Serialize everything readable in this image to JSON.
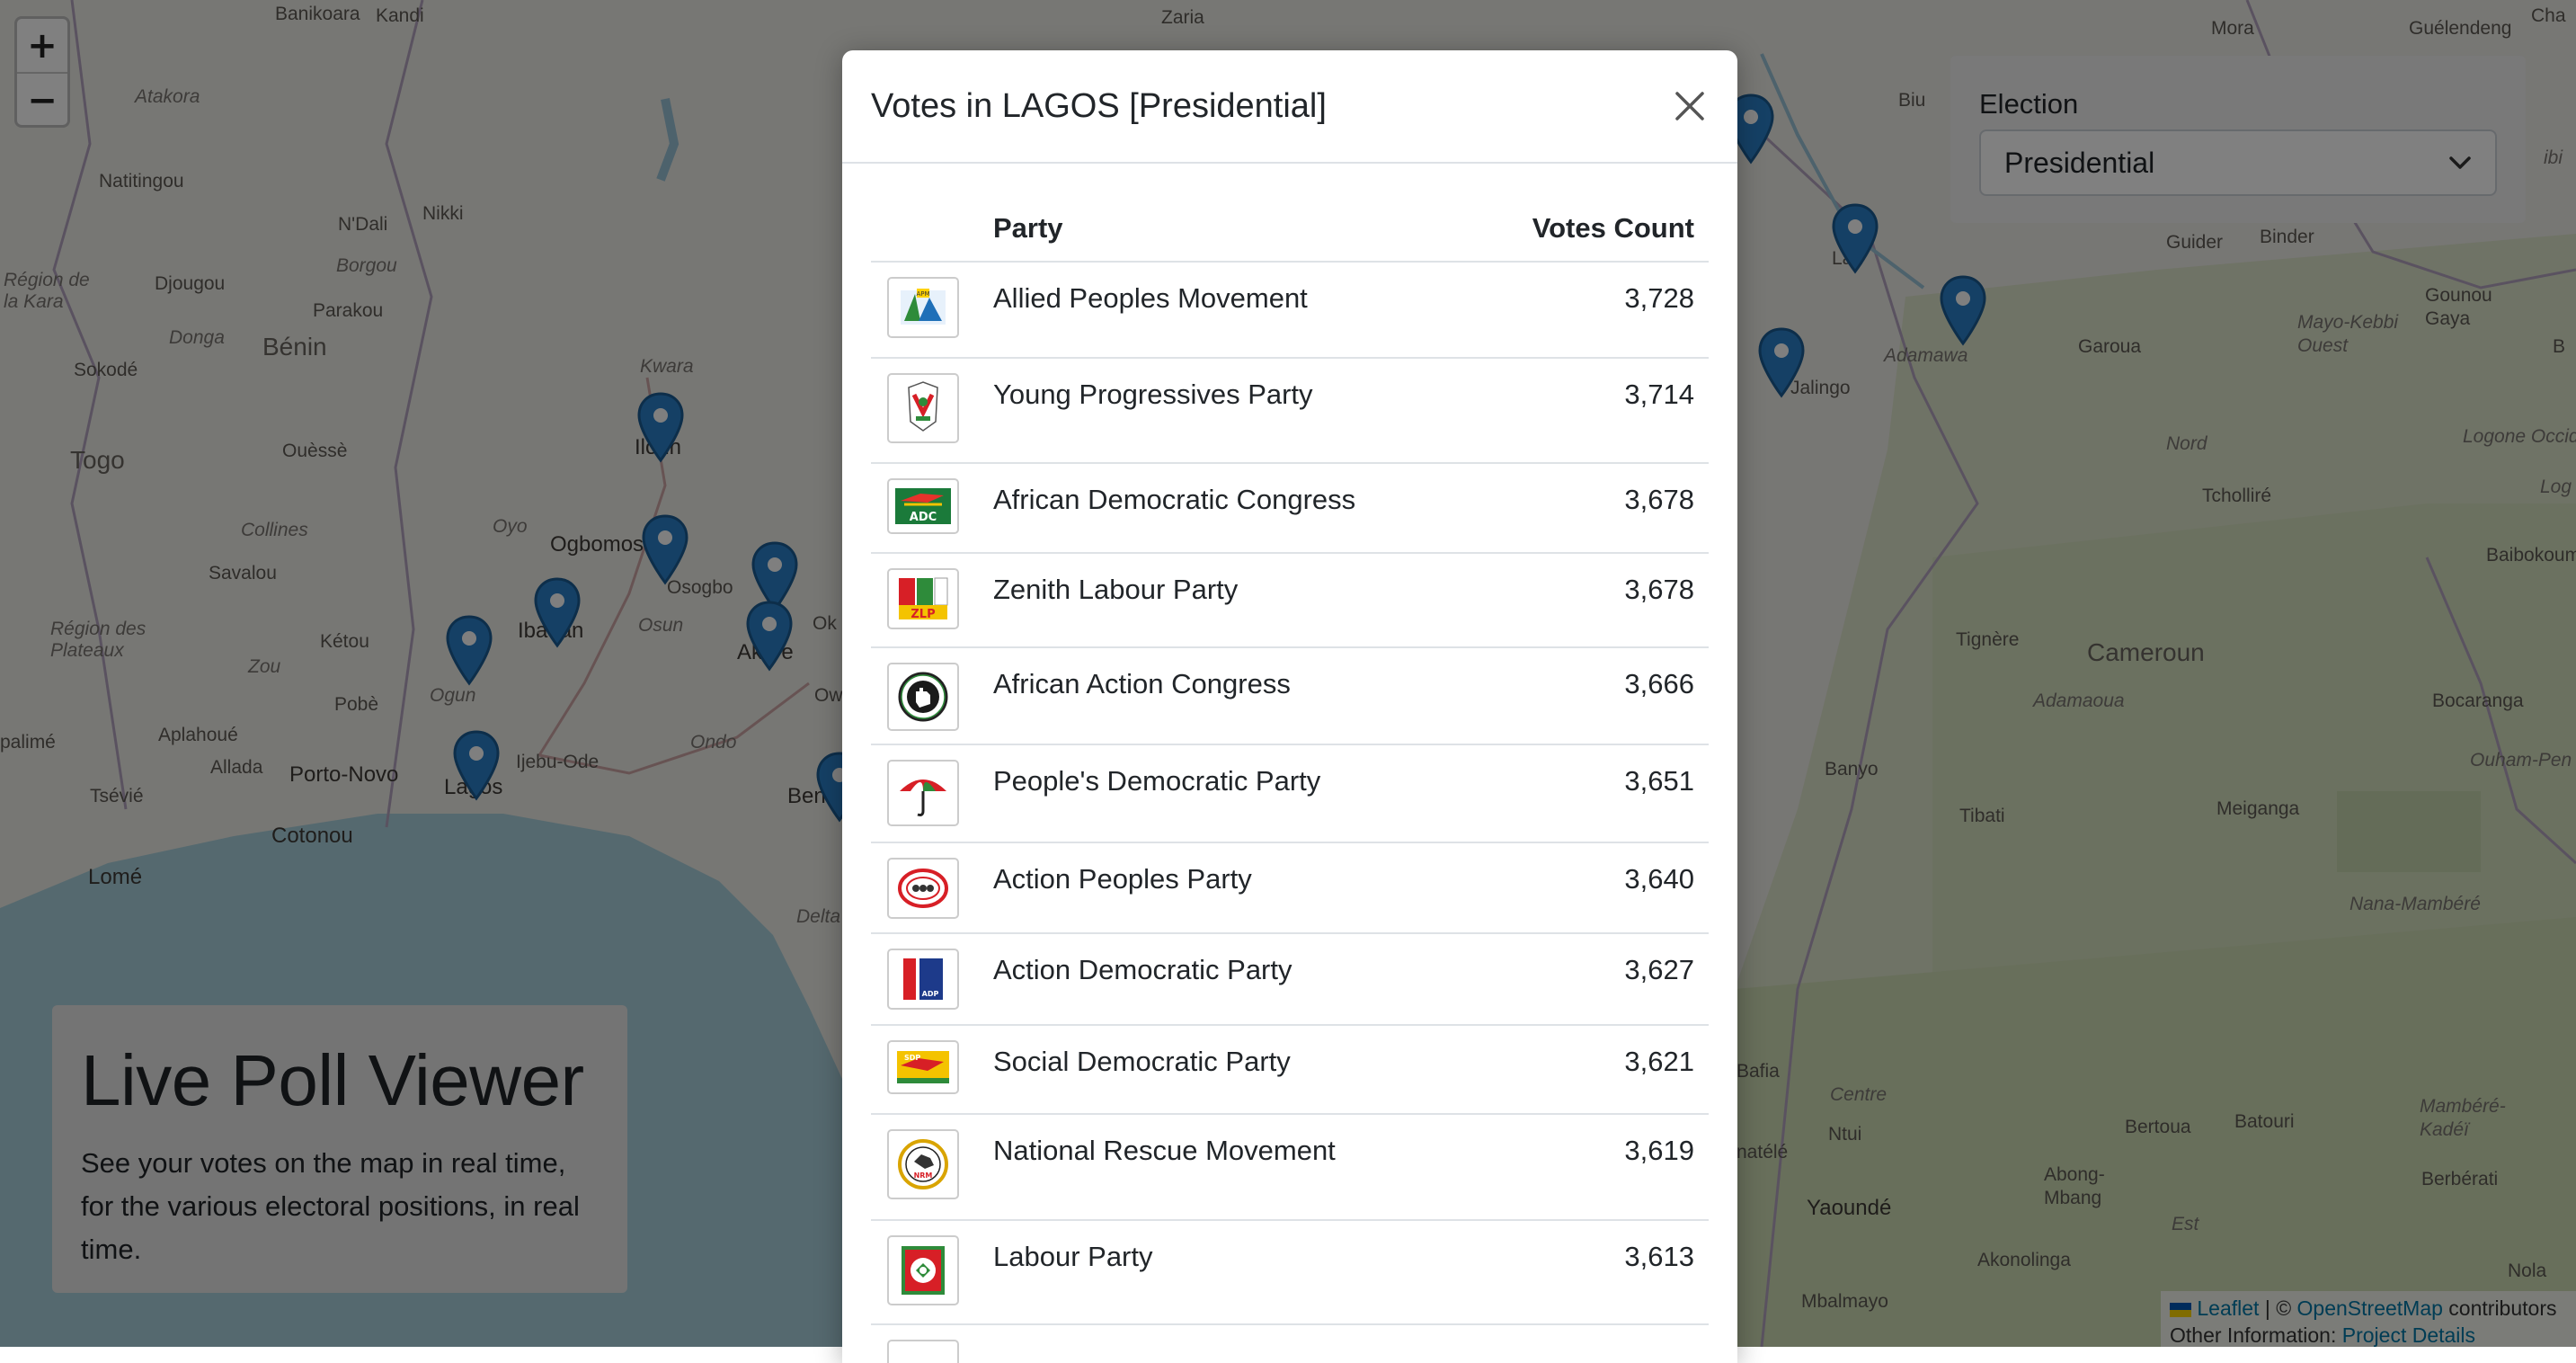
{
  "map": {
    "labels": {
      "banikoara": "Banikoara",
      "kandi": "Kandi",
      "zaria": "Zaria",
      "atakora": "Atakora",
      "natitingou": "Natitingou",
      "ndali": "N'Dali",
      "nikki": "Nikki",
      "borgou": "Borgou",
      "region_kara": "Région de\nla Kara",
      "djougou": "Djougou",
      "parakou": "Parakou",
      "donga": "Donga",
      "benin_country": "Bénin",
      "sokode": "Sokodé",
      "kwara": "Kwara",
      "ilorin": "Ilorin",
      "togo": "Togo",
      "ouesse": "Ouèssè",
      "collines": "Collines",
      "oyo": "Oyo",
      "ogbomoso": "Ogbomoso",
      "savalou": "Savalou",
      "osogbo": "Osogbo",
      "ibadan": "Ibadan",
      "osun": "Osun",
      "akure": "Akure",
      "region_plateaux": "Région des\nPlateaux",
      "ketou": "Kétou",
      "zou": "Zou",
      "ogun": "Ogun",
      "pobe": "Pobè",
      "palime": "palimé",
      "aplahoue": "Aplahoué",
      "allada": "Allada",
      "porto_novo": "Porto-Novo",
      "ijebu_ode": "Ijebu-Ode",
      "ondo": "Ondo",
      "tsevie": "Tsévié",
      "lagos": "Lagos",
      "cotonou": "Cotonou",
      "lome": "Lomé",
      "benin_city": "Benin",
      "delta": "Delta",
      "mora": "Mora",
      "guelendeng": "Guélendeng",
      "biu": "Biu",
      "lau": "Lau",
      "adamawa": "Adamawa",
      "jalingo": "Jalingo",
      "guider": "Guider",
      "binder": "Binder",
      "garoua": "Garoua",
      "mayo_kebbi": "Mayo-Kebbi\nOuest",
      "gounou_gaya": "Gounou\nGaya",
      "nord": "Nord",
      "tcholliré": "Tcholliré",
      "logone": "Logone Occide",
      "baibokoum": "Baibokoum",
      "tignere": "Tignère",
      "cameroun": "Cameroun",
      "adamaoua": "Adamaoua",
      "bocaranga": "Bocaranga",
      "ouham": "Ouham-Pen",
      "banyo": "Banyo",
      "tibati": "Tibati",
      "meiganga": "Meiganga",
      "nana_mambere": "Nana-Mambéré",
      "bafia": "Bafia",
      "centre": "Centre",
      "ntui": "Ntui",
      "bertoua": "Bertoua",
      "batouri": "Batouri",
      "mambere_kadei": "Mambéré-\nKadéï",
      "abong_mbang": "Abong-\nMbang",
      "berberati": "Berbérati",
      "natele": "natélé",
      "yaounde": "Yaoundé",
      "est": "Est",
      "akonolinga": "Akonolinga",
      "mbalmayo": "Mbalmayo",
      "nola": "Nola",
      "chad": "Cha",
      "b_edge": "B",
      "bi_edge": "ibi",
      "log_edge": "Log",
      "ow": "Ow",
      "ok": "Ok"
    }
  },
  "zoom": {
    "in_label": "+",
    "out_label": "−"
  },
  "election": {
    "label": "Election",
    "selected": "Presidential"
  },
  "hero": {
    "title": "Live Poll Viewer",
    "description": "See your votes on the map in real time, for the various electoral positions, in real time."
  },
  "attribution": {
    "leaflet": "Leaflet",
    "sep": " | © ",
    "osm": "OpenStreetMap",
    "contributors": " contributors",
    "other_label": "Other Information: ",
    "project_link": "Project Details"
  },
  "modal": {
    "title": "Votes in LAGOS [Presidential]",
    "columns": {
      "party": "Party",
      "votes": "Votes Count"
    },
    "rows": [
      {
        "party": "Allied Peoples Movement",
        "votes": "3,728",
        "logo": "apm-logo"
      },
      {
        "party": "Young Progressives Party",
        "votes": "3,714",
        "logo": "ypp-logo"
      },
      {
        "party": "African Democratic Congress",
        "votes": "3,678",
        "logo": "adc-logo"
      },
      {
        "party": "Zenith Labour Party",
        "votes": "3,678",
        "logo": "zlp-logo"
      },
      {
        "party": "African Action Congress",
        "votes": "3,666",
        "logo": "aac-logo"
      },
      {
        "party": "People's Democratic Party",
        "votes": "3,651",
        "logo": "pdp-logo"
      },
      {
        "party": "Action Peoples Party",
        "votes": "3,640",
        "logo": "app-logo"
      },
      {
        "party": "Action Democratic Party",
        "votes": "3,627",
        "logo": "adp-logo"
      },
      {
        "party": "Social Democratic Party",
        "votes": "3,621",
        "logo": "sdp-logo"
      },
      {
        "party": "National Rescue Movement",
        "votes": "3,619",
        "logo": "nrm-logo"
      },
      {
        "party": "Labour Party",
        "votes": "3,613",
        "logo": "lp-logo"
      }
    ]
  }
}
